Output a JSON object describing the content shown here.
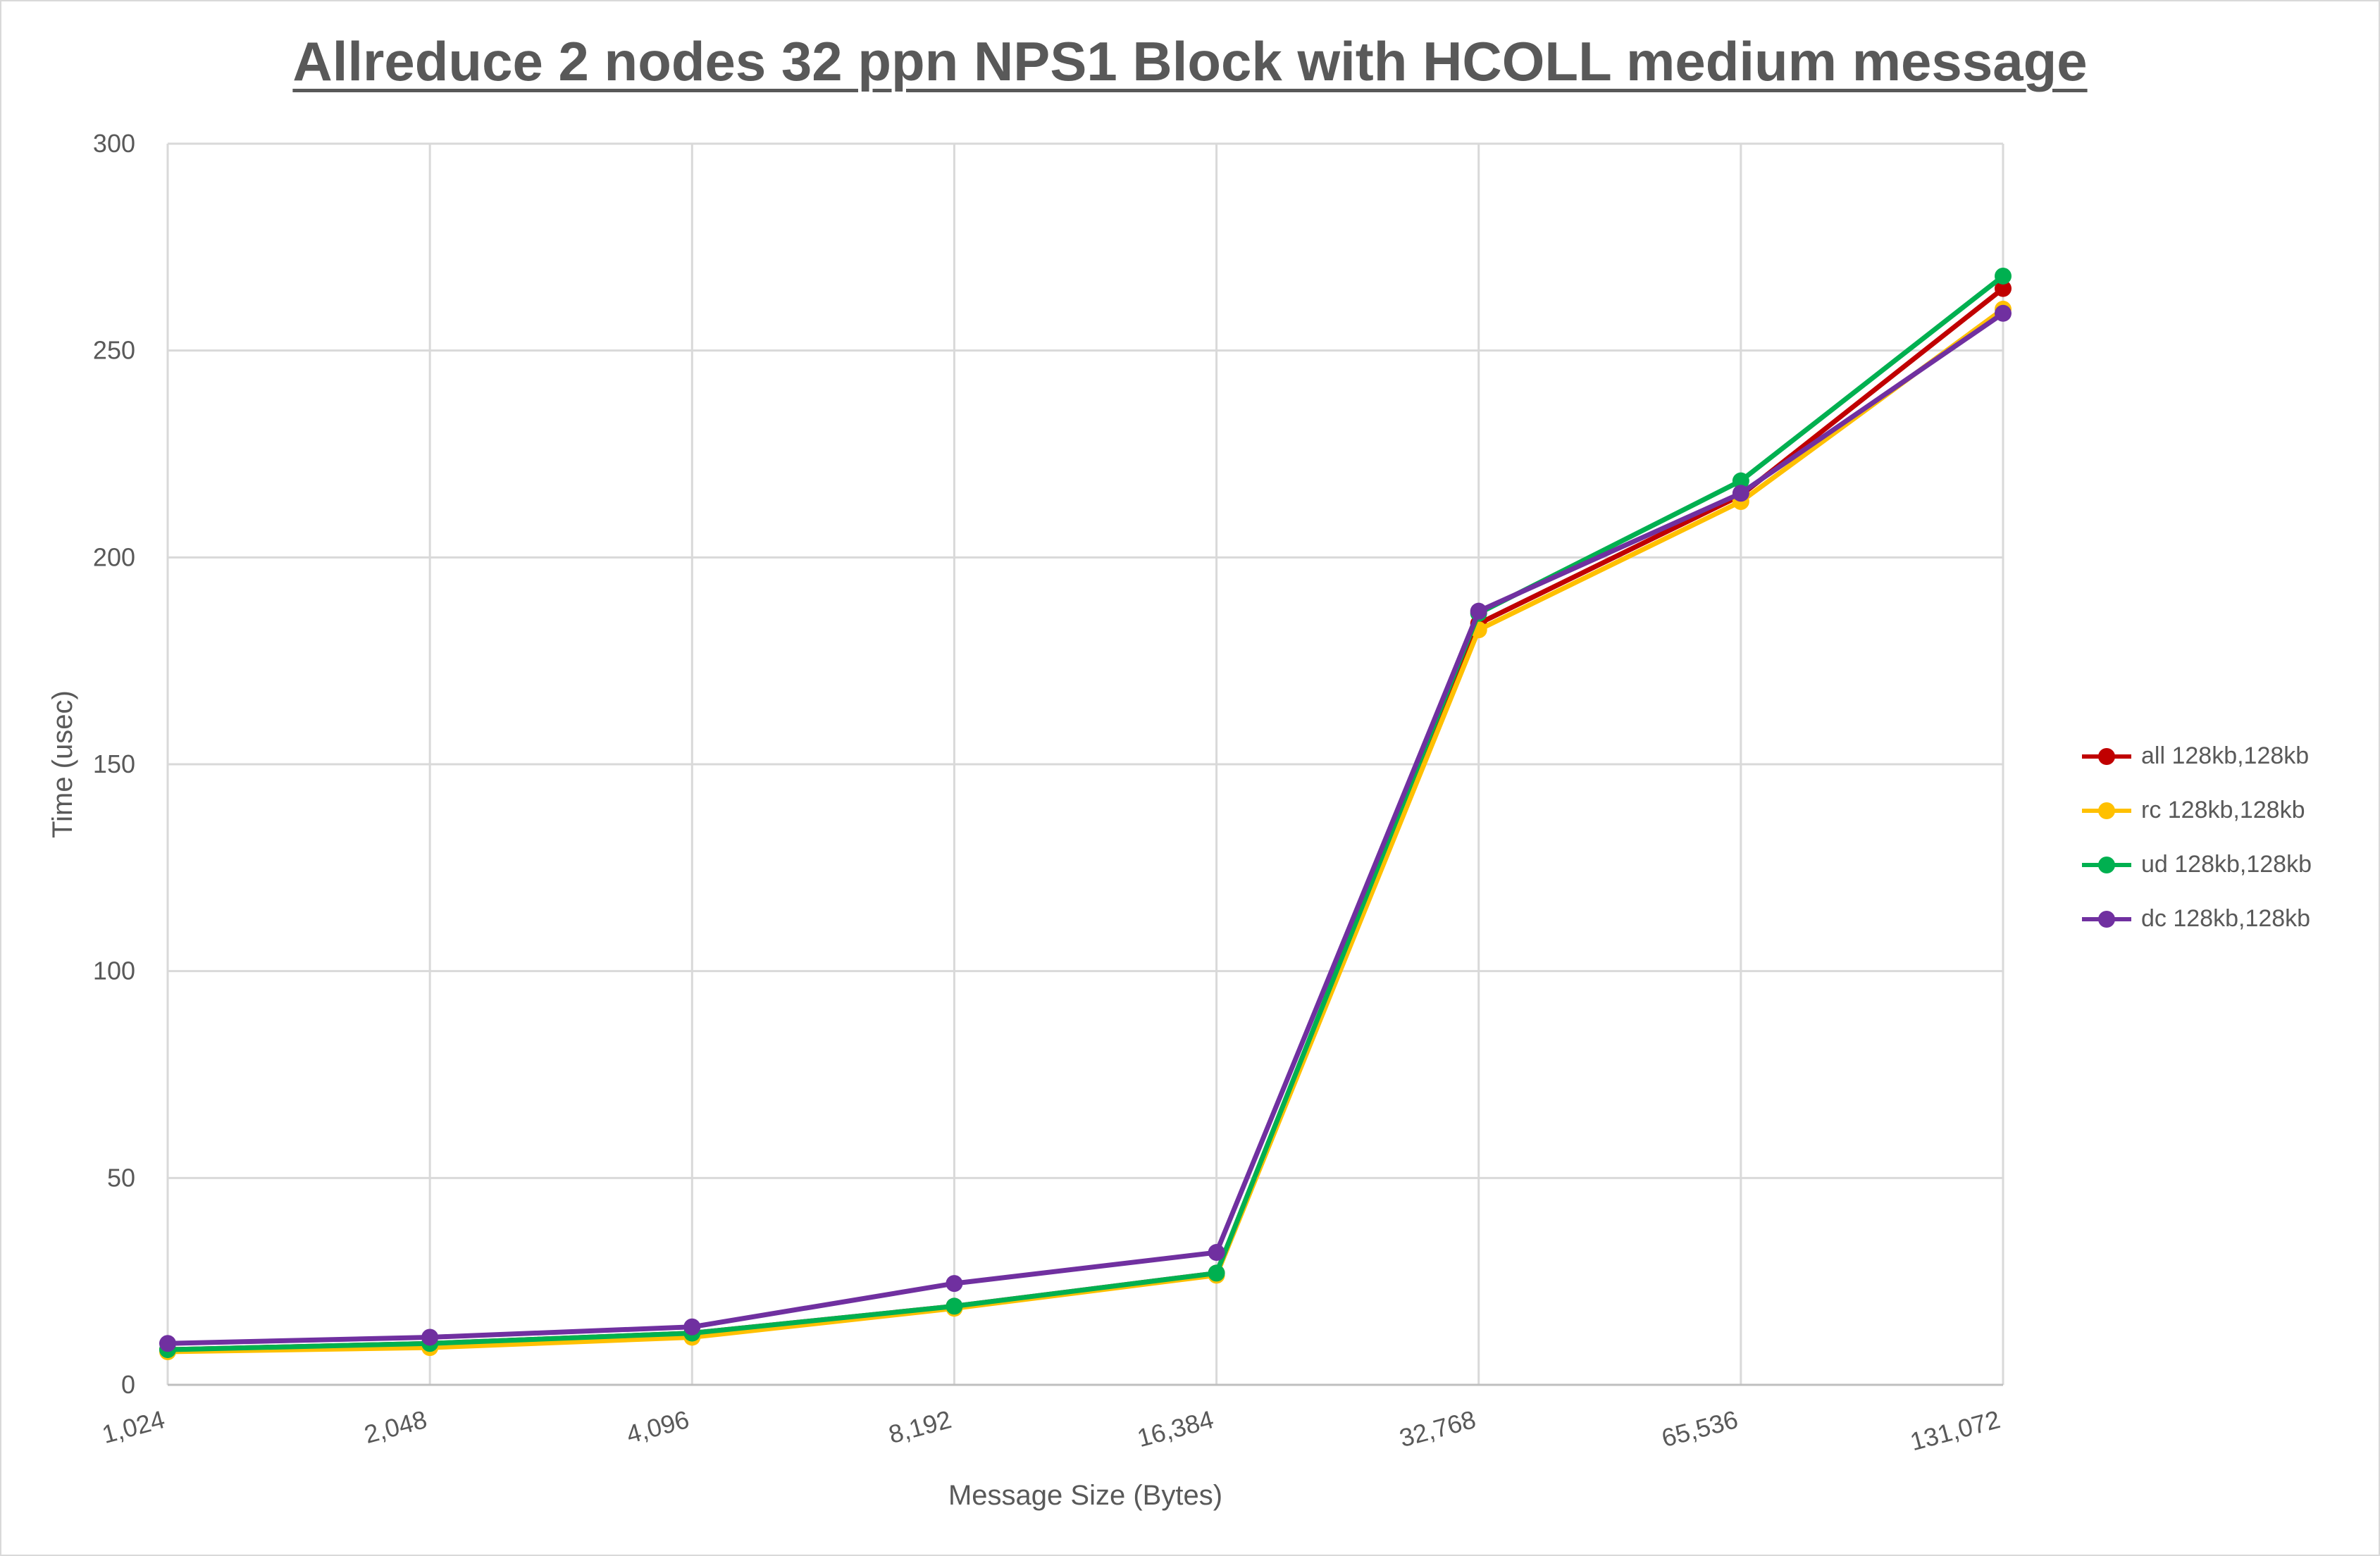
{
  "chart_data": {
    "type": "line",
    "title": "Allreduce 2 nodes 32 ppn NPS1 Block with HCOLL medium message",
    "xlabel": "Message Size (Bytes)",
    "ylabel": "Time (usec)",
    "categories": [
      "1,024",
      "2,048",
      "4,096",
      "8,192",
      "16,384",
      "32,768",
      "65,536",
      "131,072"
    ],
    "ylim": [
      0,
      300
    ],
    "yticks": [
      0,
      50,
      100,
      150,
      200,
      250,
      300
    ],
    "ytick_labels": [
      "0",
      "50",
      "100",
      "150",
      "200",
      "250",
      "300"
    ],
    "grid": true,
    "legend_position": "right",
    "series": [
      {
        "name": "all 128kb,128kb",
        "color": "#c00000",
        "values": [
          8.5,
          10,
          12.5,
          19,
          27,
          184,
          215,
          265
        ]
      },
      {
        "name": "rc 128kb,128kb",
        "color": "#ffc000",
        "values": [
          8,
          9,
          11.5,
          18.5,
          26.5,
          182.5,
          213.5,
          260
        ]
      },
      {
        "name": "ud 128kb,128kb",
        "color": "#00b050",
        "values": [
          8.5,
          10,
          12.5,
          19,
          27,
          186.5,
          218.5,
          268
        ]
      },
      {
        "name": "dc 128kb,128kb",
        "color": "#7030a0",
        "values": [
          10,
          11.5,
          14,
          24.5,
          32,
          187,
          215.5,
          259
        ]
      }
    ]
  }
}
